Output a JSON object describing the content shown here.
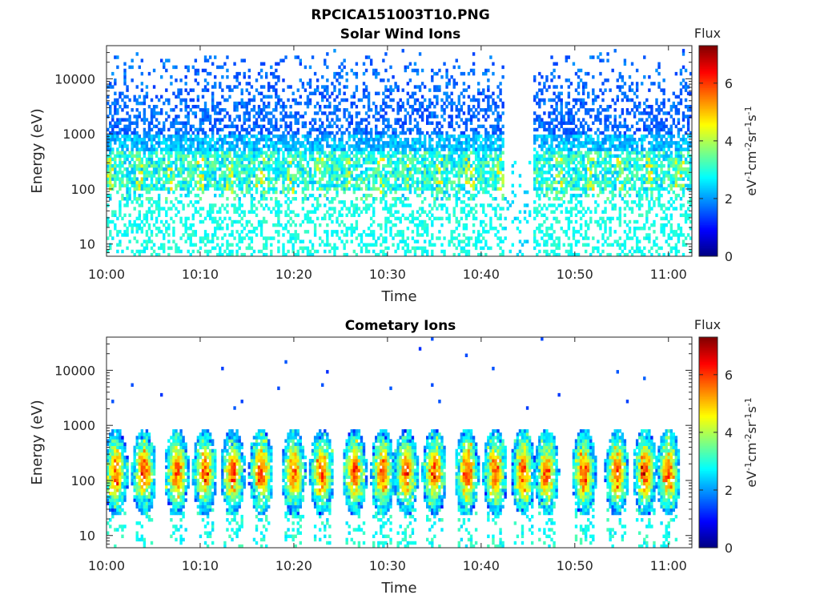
{
  "figure": {
    "title": "RPCICA151003T10.PNG"
  },
  "chart_data": [
    {
      "type": "heatmap",
      "title": "Solar Wind Ions",
      "xlabel": "Time",
      "ylabel": "Energy (eV)",
      "x_ticks": [
        "10:00",
        "10:10",
        "10:20",
        "10:30",
        "10:40",
        "10:50",
        "11:00"
      ],
      "x_tick_minutes": [
        0,
        10,
        20,
        30,
        40,
        50,
        60
      ],
      "xlim_minutes": [
        0,
        62.5
      ],
      "y_scale": "log",
      "y_ticks": [
        "10",
        "100",
        "1000",
        "10000"
      ],
      "y_tick_values": [
        10,
        100,
        1000,
        10000
      ],
      "ylim": [
        6,
        40000
      ],
      "data_gap_minutes": [
        42.5,
        45.5
      ],
      "colorbar": {
        "title": "Flux",
        "label": "eV-1cm-2sr-1s-1",
        "ticks": [
          "0",
          "2",
          "4",
          "6"
        ],
        "tick_values": [
          0,
          2,
          4,
          6
        ],
        "range": [
          0,
          7.3
        ],
        "colormap": "jet"
      }
    },
    {
      "type": "heatmap",
      "title": "Cometary Ions",
      "xlabel": "Time",
      "ylabel": "Energy (eV)",
      "x_ticks": [
        "10:00",
        "10:10",
        "10:20",
        "10:30",
        "10:40",
        "10:50",
        "11:00"
      ],
      "x_tick_minutes": [
        0,
        10,
        20,
        30,
        40,
        50,
        60
      ],
      "xlim_minutes": [
        0,
        62.5
      ],
      "y_scale": "log",
      "y_ticks": [
        "10",
        "100",
        "1000",
        "10000"
      ],
      "y_tick_values": [
        10,
        100,
        1000,
        10000
      ],
      "ylim": [
        6,
        40000
      ],
      "burst_minutes": [
        1,
        4,
        7.5,
        10.5,
        13.5,
        16.5,
        20,
        23,
        26.5,
        29.5,
        32,
        35,
        38.5,
        41.5,
        44.5,
        47,
        51,
        54.5,
        57.5,
        60
      ],
      "colorbar": {
        "title": "Flux",
        "label": "eV-1cm-2sr-1s-1",
        "ticks": [
          "0",
          "2",
          "4",
          "6"
        ],
        "tick_values": [
          0,
          2,
          4,
          6
        ],
        "range": [
          0,
          7.3
        ],
        "colormap": "jet"
      }
    }
  ]
}
